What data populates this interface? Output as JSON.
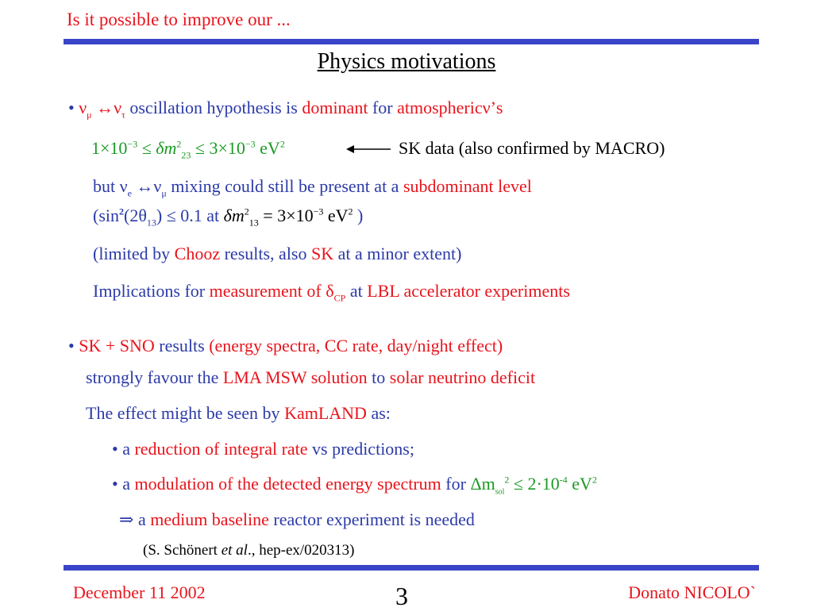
{
  "header": {
    "title": "Is it possible to improve our ..."
  },
  "slide": {
    "heading": "Physics motivations"
  },
  "b1": {
    "bullet": "•",
    "nu_mu": "ν",
    "mu_sub": "μ",
    "arrow": "↔",
    "nu_tau": "ν",
    "tau_sub": "τ",
    "t1": "oscillation hypothesis is",
    "t2": "dominant",
    "t3": "for",
    "t4": "atmospheric",
    "t5": "ν’s"
  },
  "formula1": {
    "a": "1×10",
    "a_exp": "−3",
    "le1": " ≤ δm",
    "m_sup": "2",
    "m_sub": "23",
    "le2": " ≤ 3×10",
    "b_exp": "−3",
    "unit": " eV",
    "unit_exp": "2"
  },
  "sk_note": "SK data (also confirmed by MACRO)",
  "b1b": {
    "t1": "but ν",
    "e_sub": "e",
    "t2": " ↔ν",
    "mu_sub": "μ",
    "t3": " mixing could still be present at a",
    "t4": "subdominant level"
  },
  "formula2": {
    "t1": "(sin",
    "sup2": "2",
    "t2": "(2θ",
    "sub13": "13",
    "t3": ") ≤ 0.1 at",
    "m": "δm",
    "m_sup": "2",
    "m_sub": "13",
    "eq": " = 3×10",
    "exp": "−3",
    "unit": " eV",
    "unit_exp": "2",
    "close": " )"
  },
  "b1c": {
    "t1": "(limited by",
    "t2": "Chooz",
    "t3": "results, also",
    "t4": "SK",
    "t5": "at a minor extent)"
  },
  "b1d": {
    "t1": "Implications for",
    "t2": "measurement of δ",
    "cp": "CP",
    "t3": "at",
    "t4": "LBL accelerator experiments"
  },
  "b2": {
    "bullet": "•",
    "t1": "SK + SNO",
    "t2": "results",
    "t3": "(energy spectra, CC rate, day/night effect)"
  },
  "b2b": {
    "t1": "strongly favour the",
    "t2": "LMA MSW solution",
    "t3": "to",
    "t4": "solar neutrino deficit"
  },
  "b2c": {
    "t1": "The effect might be seen by",
    "t2": "KamLAND",
    "t3": "as:"
  },
  "sub1": {
    "bullet": "•",
    "t1": "a",
    "t2": "reduction of integral rate",
    "t3": "vs predictions;"
  },
  "sub2": {
    "bullet": "•",
    "t1": "a",
    "t2": "modulation of the detected energy spectrum",
    "t3": "for",
    "t4": "Δm",
    "sol": "sol",
    "sq": "2",
    "t5": " ≤ 2·10",
    "exp": "-4",
    "t6": " eV",
    "exp2": "2"
  },
  "implies": {
    "arrow": "⇒",
    "t1": "a",
    "t2": "medium baseline",
    "t3": "reactor experiment is needed"
  },
  "citation": {
    "t1": "(S. Schönert ",
    "etal": "et al",
    "t2": "., hep-ex/020313)"
  },
  "footer": {
    "date": "December 11 2002",
    "page": "3",
    "author": "Donato NICOLO`"
  },
  "colors": {
    "accent_bar": "#3a44c8",
    "red": "#e8141c",
    "blue": "#2b3aa8",
    "green": "#1a9a24"
  }
}
